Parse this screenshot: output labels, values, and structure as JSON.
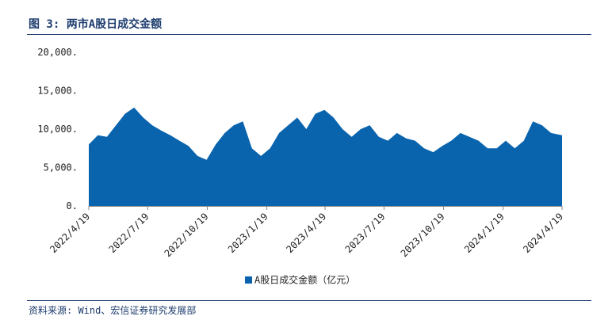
{
  "figure": {
    "title": "图 3: 两市A股日成交金额",
    "source": "资料来源: Wind、宏信证券研究发展部"
  },
  "colors": {
    "accent": "#1d3c6e",
    "series": "#0a64ad",
    "axis": "#888888"
  },
  "chart_data": {
    "type": "area",
    "title": "",
    "xlabel": "",
    "ylabel": "",
    "ylim": [
      0,
      20000
    ],
    "yticks": [
      "0.",
      "5,000.",
      "10,000.",
      "15,000.",
      "20,000."
    ],
    "xticks": [
      "2022/4/19",
      "2022/7/19",
      "2022/10/19",
      "2023/1/19",
      "2023/4/19",
      "2023/7/19",
      "2023/10/19",
      "2024/1/19",
      "2024/4/19"
    ],
    "grid": false,
    "legend_position": "bottom",
    "series": [
      {
        "name": "A股日成交金额（亿元）",
        "x": [
          "2022/4/19",
          "2022/5/3",
          "2022/5/17",
          "2022/5/31",
          "2022/6/14",
          "2022/6/28",
          "2022/7/12",
          "2022/7/26",
          "2022/8/9",
          "2022/8/23",
          "2022/9/6",
          "2022/9/20",
          "2022/10/4",
          "2022/10/18",
          "2022/11/1",
          "2022/11/15",
          "2022/11/29",
          "2022/12/13",
          "2022/12/27",
          "2023/1/10",
          "2023/1/24",
          "2023/2/7",
          "2023/2/21",
          "2023/3/7",
          "2023/3/21",
          "2023/4/4",
          "2023/4/18",
          "2023/5/2",
          "2023/5/16",
          "2023/5/30",
          "2023/6/13",
          "2023/6/27",
          "2023/7/11",
          "2023/7/25",
          "2023/8/8",
          "2023/8/22",
          "2023/9/5",
          "2023/9/19",
          "2023/10/3",
          "2023/10/17",
          "2023/10/31",
          "2023/11/14",
          "2023/11/28",
          "2023/12/12",
          "2023/12/26",
          "2024/1/9",
          "2024/1/23",
          "2024/2/6",
          "2024/2/20",
          "2024/3/5",
          "2024/3/19",
          "2024/4/2",
          "2024/4/19"
        ],
        "values": [
          8000,
          9200,
          9000,
          10500,
          12000,
          12800,
          11500,
          10500,
          9800,
          9200,
          8500,
          7800,
          6500,
          6000,
          8000,
          9500,
          10500,
          11000,
          7500,
          6500,
          7500,
          9500,
          10500,
          11500,
          10000,
          12000,
          12500,
          11500,
          10000,
          9000,
          10000,
          10500,
          9000,
          8500,
          9500,
          8800,
          8500,
          7500,
          7000,
          7800,
          8500,
          9500,
          9000,
          8500,
          7500,
          7500,
          8500,
          7500,
          8500,
          11000,
          10500,
          9500,
          9200
        ]
      }
    ]
  }
}
